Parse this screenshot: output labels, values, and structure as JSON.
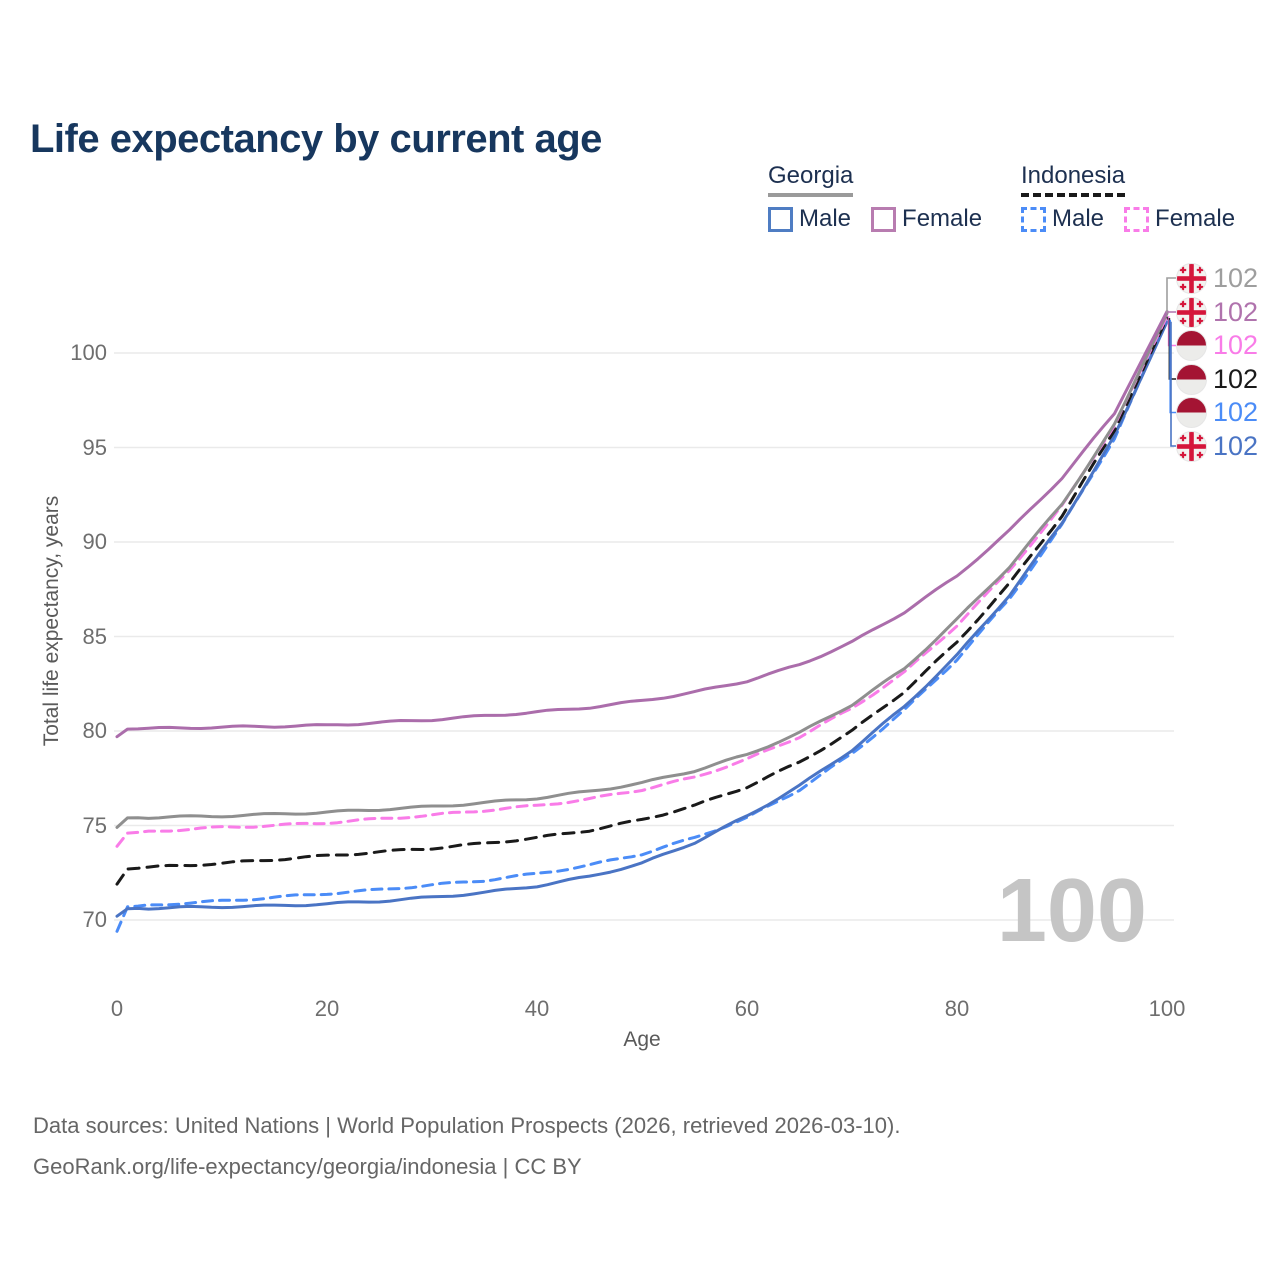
{
  "title": "Life expectancy by current age",
  "legend": {
    "groups": [
      {
        "id": "georgia",
        "country": "Georgia",
        "line_style": "solid",
        "underline_color": "#9a9a9a",
        "items": [
          {
            "id": "male",
            "label": "Male",
            "color": "#4f7dc3",
            "dashed": false
          },
          {
            "id": "female",
            "label": "Female",
            "color": "#b87cb0",
            "dashed": false
          }
        ]
      },
      {
        "id": "indonesia",
        "country": "Indonesia",
        "line_style": "dashed",
        "underline_color": "#1a1a1a",
        "items": [
          {
            "id": "male",
            "label": "Male",
            "color": "#4b8cf7",
            "dashed": true
          },
          {
            "id": "female",
            "label": "Female",
            "color": "#f97ce8",
            "dashed": true
          }
        ]
      }
    ]
  },
  "axes": {
    "x": {
      "title": "Age",
      "ticks": [
        "0",
        "20",
        "40",
        "60",
        "80",
        "100"
      ]
    },
    "y": {
      "title": "Total life expectancy, years",
      "ticks": [
        "70",
        "75",
        "80",
        "85",
        "90",
        "95",
        "100"
      ]
    }
  },
  "watermark_age": "100",
  "footer": {
    "line1": "Data sources: United Nations | World Population Prospects (2026, retrieved 2026-03-10).",
    "line2": "GeoRank.org/life-expectancy/georgia/indonesia | CC BY"
  },
  "chart_data": {
    "type": "line",
    "title": "Life expectancy by current age",
    "xlabel": "Age",
    "ylabel": "Total life expectancy, years",
    "xlim": [
      0,
      100
    ],
    "ylim": [
      68.5,
      103.2
    ],
    "x_ticks": [
      0,
      20,
      40,
      60,
      80,
      100
    ],
    "y_ticks": [
      70,
      75,
      80,
      85,
      90,
      95,
      100
    ],
    "grid": "horizontal",
    "legend_position": "top-right",
    "ages": [
      0,
      1,
      5,
      10,
      15,
      20,
      25,
      30,
      35,
      40,
      45,
      50,
      55,
      60,
      65,
      70,
      75,
      80,
      85,
      90,
      95,
      100
    ],
    "series": [
      {
        "id": "indonesia-male",
        "name": "Indonesia Male",
        "color": "#4b8cf7",
        "dash": "10 7",
        "flag": "indonesia",
        "values": [
          69.4,
          70.7,
          70.85,
          71.0,
          71.2,
          71.4,
          71.6,
          71.85,
          72.1,
          72.45,
          72.9,
          73.5,
          74.35,
          75.4,
          76.9,
          78.8,
          81.1,
          83.8,
          87.0,
          90.9,
          95.5,
          101.75
        ]
      },
      {
        "id": "georgia-male",
        "name": "Georgia Male",
        "color": "#4a74c4",
        "dash": null,
        "flag": "georgia",
        "values": [
          70.2,
          70.6,
          70.65,
          70.7,
          70.75,
          70.85,
          71.0,
          71.2,
          71.45,
          71.8,
          72.3,
          73.0,
          74.1,
          75.5,
          77.1,
          79.0,
          81.3,
          84.0,
          87.2,
          91.0,
          95.6,
          101.65
        ]
      },
      {
        "id": "indonesia-all",
        "name": "Indonesia",
        "color": "#1a1a1a",
        "dash": "11 8",
        "flag": "indonesia",
        "values": [
          71.9,
          72.7,
          72.85,
          73.0,
          73.2,
          73.4,
          73.6,
          73.8,
          74.05,
          74.35,
          74.75,
          75.3,
          76.05,
          77.05,
          78.35,
          80.0,
          82.1,
          84.7,
          87.8,
          91.4,
          95.9,
          101.85
        ]
      },
      {
        "id": "indonesia-female",
        "name": "Indonesia Female",
        "color": "#f97ce8",
        "dash": "10 7",
        "flag": "indonesia",
        "values": [
          73.9,
          74.6,
          74.75,
          74.9,
          75.0,
          75.15,
          75.35,
          75.55,
          75.8,
          76.05,
          76.4,
          76.9,
          77.55,
          78.5,
          79.7,
          81.2,
          83.1,
          85.6,
          88.5,
          91.9,
          96.2,
          101.95
        ]
      },
      {
        "id": "georgia-all",
        "name": "Georgia",
        "color": "#8f8f8f",
        "dash": null,
        "flag": "georgia",
        "values": [
          74.9,
          75.4,
          75.45,
          75.5,
          75.6,
          75.7,
          75.85,
          76.0,
          76.2,
          76.45,
          76.8,
          77.25,
          77.9,
          78.75,
          79.9,
          81.4,
          83.3,
          85.9,
          88.7,
          92.0,
          96.2,
          102.1
        ]
      },
      {
        "id": "georgia-female",
        "name": "Georgia Female",
        "color": "#ab6dab",
        "dash": null,
        "flag": "georgia",
        "values": [
          79.7,
          80.1,
          80.15,
          80.2,
          80.25,
          80.3,
          80.45,
          80.6,
          80.8,
          81.0,
          81.25,
          81.6,
          82.05,
          82.65,
          83.5,
          84.7,
          86.3,
          88.2,
          90.6,
          93.4,
          96.8,
          102.2
        ]
      }
    ],
    "end_labels": [
      {
        "series": "georgia-all",
        "flag": "georgia",
        "value": "102",
        "color": "#9e9e9e"
      },
      {
        "series": "georgia-female",
        "flag": "georgia",
        "value": "102",
        "color": "#b073ad"
      },
      {
        "series": "indonesia-female",
        "flag": "indonesia",
        "value": "102",
        "color": "#f97ce8"
      },
      {
        "series": "indonesia-all",
        "flag": "indonesia",
        "value": "102",
        "color": "#1a1a1a"
      },
      {
        "series": "indonesia-male",
        "flag": "indonesia",
        "value": "102",
        "color": "#4b8cf7"
      },
      {
        "series": "georgia-male",
        "flag": "georgia",
        "value": "102",
        "color": "#4a74c4"
      }
    ]
  }
}
